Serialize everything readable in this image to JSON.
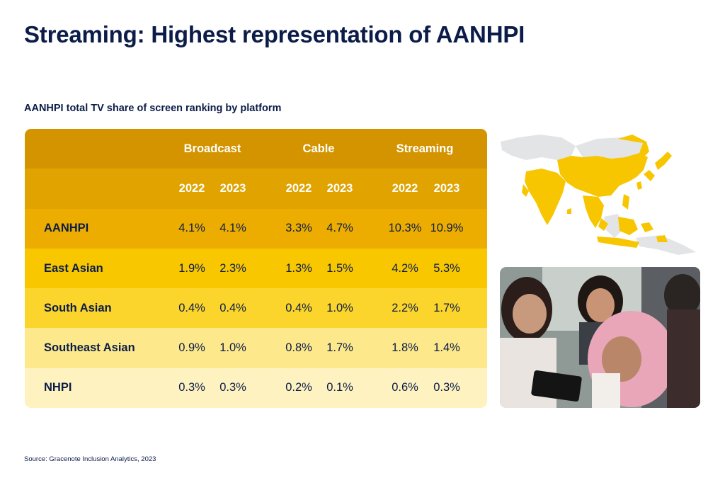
{
  "title": "Streaming: Highest representation of AANHPI",
  "subtitle": "AANHPI total TV share of screen ranking by platform",
  "table": {
    "platforms": [
      "Broadcast",
      "Cable",
      "Streaming"
    ],
    "years": [
      "2022",
      "2023",
      "2022",
      "2023",
      "2022",
      "2023"
    ],
    "rows": [
      {
        "label": "AANHPI",
        "values": [
          "4.1%",
          "4.1%",
          "3.3%",
          "4.7%",
          "10.3%",
          "10.9%"
        ]
      },
      {
        "label": "East Asian",
        "values": [
          "1.9%",
          "2.3%",
          "1.3%",
          "1.5%",
          "4.2%",
          "5.3%"
        ]
      },
      {
        "label": "South Asian",
        "values": [
          "0.4%",
          "0.4%",
          "0.4%",
          "1.0%",
          "2.2%",
          "1.7%"
        ]
      },
      {
        "label": "Southeast Asian",
        "values": [
          "0.9%",
          "1.0%",
          "0.8%",
          "1.7%",
          "1.8%",
          "1.4%"
        ]
      },
      {
        "label": "NHPI",
        "values": [
          "0.3%",
          "0.3%",
          "0.2%",
          "0.1%",
          "0.6%",
          "0.3%"
        ]
      }
    ]
  },
  "source": "Source: Gracenote Inclusion Analytics, 2023",
  "colors": {
    "title": "#0b1c48",
    "map_highlight": "#f7c600",
    "map_base": "#e3e4e6"
  }
}
